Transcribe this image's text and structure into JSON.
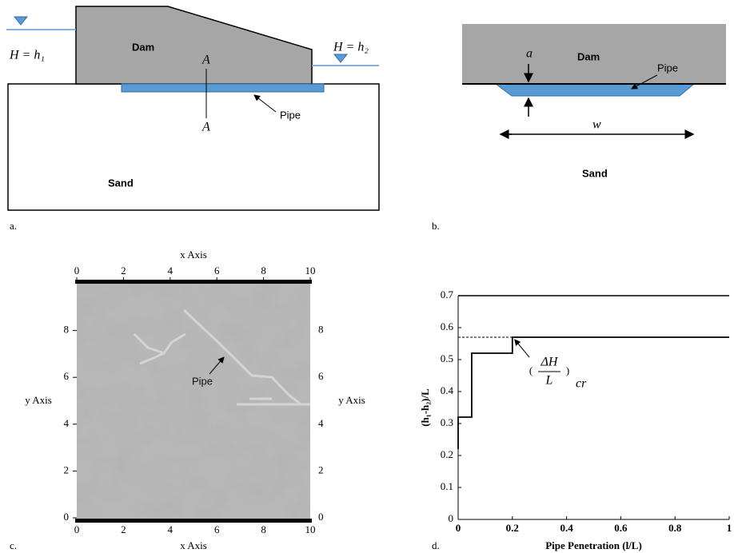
{
  "panel_a": {
    "label": "a.",
    "left_head": "H = h₁",
    "right_head": "H = h₂",
    "dam": "Dam",
    "section_top": "A",
    "section_bottom": "A",
    "pipe": "Pipe",
    "sand": "Sand"
  },
  "panel_b": {
    "label": "b.",
    "dam": "Dam",
    "pipe": "Pipe",
    "thickness": "a",
    "width": "w",
    "sand": "Sand"
  },
  "chart_data": [
    {
      "type": "image",
      "label": "c.",
      "xlabel": "x Axis",
      "ylabel": "y Axis",
      "annotation": "Pipe",
      "xlim": [
        0,
        10
      ],
      "ylim": [
        0,
        10
      ],
      "xticks": [
        0,
        2,
        4,
        6,
        8,
        10
      ],
      "yticks": [
        0,
        2,
        4,
        6,
        8
      ]
    },
    {
      "type": "line",
      "label": "d.",
      "xlabel": "Pipe Penetration (l/L)",
      "ylabel": "(h₁-h₂)/L",
      "annotation": {
        "numerator": "ΔH",
        "denominator": "L",
        "subscript": "cr"
      },
      "x": [
        0,
        0,
        0.05,
        0.05,
        0.2,
        0.2,
        1
      ],
      "values": [
        0.22,
        0.32,
        0.32,
        0.52,
        0.52,
        0.57,
        0.57
      ],
      "color": "#000000",
      "xlim": [
        0,
        1
      ],
      "ylim": [
        0,
        0.7
      ],
      "xticks": [
        0,
        0.2,
        0.4,
        0.6,
        0.8,
        1
      ],
      "yticks": [
        0,
        0.1,
        0.2,
        0.3,
        0.4,
        0.5,
        0.6,
        0.7
      ]
    }
  ]
}
